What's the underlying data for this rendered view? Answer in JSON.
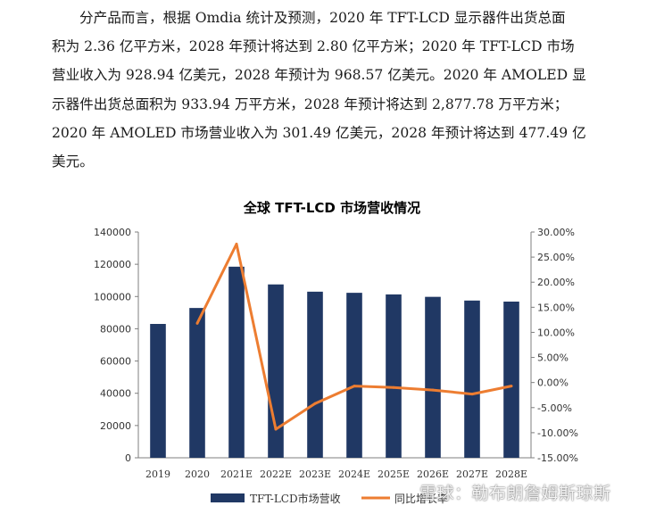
{
  "paragraph": {
    "lines": [
      "分产品而言，根据 Omdia 统计及预测，2020 年 TFT-LCD 显示器件出货总面",
      "积为 2.36 亿平方米，2028 年预计将达到 2.80 亿平方米；2020 年 TFT-LCD 市场",
      "营业收入为 928.94 亿美元，2028 年预计为 968.57 亿美元。2020 年 AMOLED 显",
      "示器件出货总面积为 933.94 万平方米，2028 年预计将达到 2,877.78 万平方米；",
      "2020 年 AMOLED 市场营业收入为 301.49 亿美元，2028 年预计将达到 477.49 亿",
      "美元。"
    ]
  },
  "watermark": "雪球：勒布朗詹姆斯琼斯",
  "chart_data": {
    "type": "bar",
    "title": "全球 TFT-LCD 市场营收情况",
    "categories": [
      "2019",
      "2020",
      "2021E",
      "2022E",
      "2023E",
      "2024E",
      "2025E",
      "2026E",
      "2027E",
      "2028E"
    ],
    "series": [
      {
        "name": "TFT-LCD市场营收",
        "type": "bar",
        "axis": "left",
        "color": "#203864",
        "values": [
          83000,
          92894,
          118500,
          107500,
          103000,
          102300,
          101300,
          99800,
          97500,
          96857
        ]
      },
      {
        "name": "同比增长率",
        "type": "line",
        "axis": "right",
        "color": "#ed7d31",
        "values": [
          null,
          0.118,
          0.276,
          -0.093,
          -0.042,
          -0.007,
          -0.01,
          -0.015,
          -0.023,
          -0.007
        ]
      }
    ],
    "y_left": {
      "min": 0,
      "max": 140000,
      "step": 20000,
      "ticks": [
        "0",
        "20000",
        "40000",
        "60000",
        "80000",
        "100000",
        "120000",
        "140000"
      ]
    },
    "y_right": {
      "min": -0.15,
      "max": 0.3,
      "step": 0.05,
      "ticks": [
        "-15.00%",
        "-10.00%",
        "-5.00%",
        "0.00%",
        "5.00%",
        "10.00%",
        "15.00%",
        "20.00%",
        "25.00%",
        "30.00%"
      ]
    },
    "grid": false,
    "legend_position": "bottom"
  }
}
